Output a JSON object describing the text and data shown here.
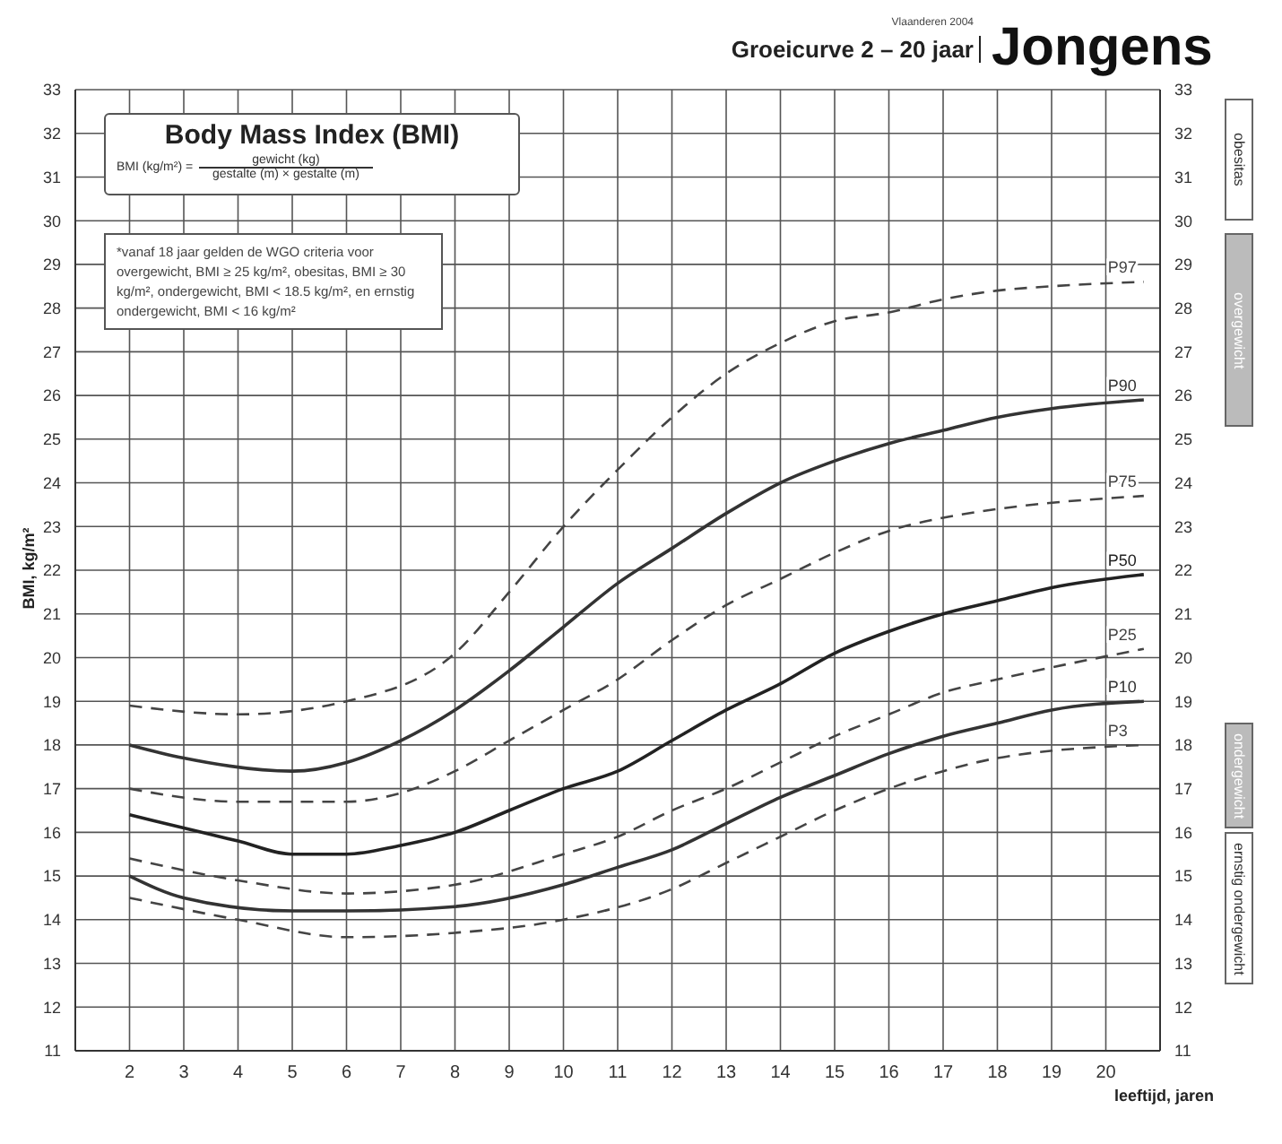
{
  "chart_data": {
    "type": "line",
    "title": "Jongens",
    "subtitle": "Groeicurve 2 – 20 jaar",
    "xlabel": "leeftijd, jaren",
    "ylabel": "BMI, kg/m²",
    "annotations": [
      "Vlaanderen 2004",
      "Body Mass Index (BMI)",
      "BMI (kg/m²) =",
      "gewicht (kg)",
      "gestalte (m) × gestalte (m)",
      "*vanaf 18 jaar gelden de WGO criteria voor overgewicht, BMI ≥ 25 kg/m², obesitas, BMI ≥ 30 kg/m², ondergewicht, BMI < 18.5 kg/m², en ernstig ondergewicht, BMI < 16 kg/m²",
      "obesitas",
      "overgewicht",
      "ondergewicht",
      "ernstig ondergewicht"
    ],
    "xlim": [
      1,
      21
    ],
    "xticks": [
      2,
      3,
      4,
      5,
      6,
      7,
      8,
      9,
      10,
      11,
      12,
      13,
      14,
      15,
      16,
      17,
      18,
      19,
      20
    ],
    "ylim": [
      11,
      33
    ],
    "yticks": [
      11,
      12,
      13,
      14,
      15,
      16,
      17,
      18,
      19,
      20,
      21,
      22,
      23,
      24,
      25,
      26,
      27,
      28,
      29,
      30,
      31,
      32,
      33
    ],
    "y2lim": [
      11,
      33
    ],
    "y2ticks": [
      11,
      12,
      13,
      14,
      15,
      16,
      17,
      18,
      19,
      20,
      21,
      22,
      23,
      24,
      25,
      26,
      27,
      28,
      29,
      30,
      31,
      32,
      33
    ],
    "grid": true,
    "marker": "none",
    "series": [
      {
        "name": "P97",
        "color": "#444444",
        "line_style": "dashed",
        "x": [
          2,
          4,
          6,
          8,
          9,
          10,
          11,
          12,
          13,
          14,
          15,
          16,
          17,
          18,
          19,
          20.7
        ],
        "values": [
          18.9,
          18.7,
          19,
          20.1,
          21.5,
          23,
          24.3,
          25.5,
          26.5,
          27.2,
          27.7,
          27.9,
          28.2,
          28.4,
          28.5,
          28.6
        ]
      },
      {
        "name": "P90",
        "color": "#333333",
        "line_style": "solid",
        "x": [
          2,
          3,
          5,
          6,
          7,
          8,
          9,
          10,
          11,
          12,
          13,
          14,
          15,
          16,
          17,
          18,
          19,
          20.7
        ],
        "values": [
          18,
          17.7,
          17.4,
          17.6,
          18.1,
          18.8,
          19.7,
          20.7,
          21.7,
          22.5,
          23.3,
          24,
          24.5,
          24.9,
          25.2,
          25.5,
          25.7,
          25.9
        ]
      },
      {
        "name": "P75",
        "color": "#444444",
        "line_style": "dashed",
        "x": [
          2,
          4,
          6,
          7,
          8,
          9,
          10,
          11,
          12,
          13,
          14,
          15,
          16,
          17,
          18,
          20.7
        ],
        "values": [
          17,
          16.7,
          16.7,
          16.9,
          17.4,
          18.1,
          18.8,
          19.5,
          20.4,
          21.2,
          21.8,
          22.4,
          22.9,
          23.2,
          23.4,
          23.7
        ]
      },
      {
        "name": "P50",
        "color": "#222222",
        "line_style": "solid",
        "x": [
          2,
          3,
          4,
          5,
          6,
          7,
          8,
          9,
          10,
          11,
          12,
          13,
          14,
          15,
          16,
          17,
          18,
          19,
          20.7
        ],
        "values": [
          16.4,
          16.1,
          15.8,
          15.5,
          15.5,
          15.7,
          16,
          16.5,
          17,
          17.4,
          18.1,
          18.8,
          19.4,
          20.1,
          20.6,
          21,
          21.3,
          21.6,
          21.9
        ]
      },
      {
        "name": "P25",
        "color": "#444444",
        "line_style": "dashed",
        "x": [
          2,
          4,
          6,
          8,
          10,
          11,
          12,
          13,
          14,
          15,
          16,
          17,
          18,
          20.7
        ],
        "values": [
          15.4,
          14.9,
          14.6,
          14.8,
          15.5,
          15.9,
          16.5,
          17,
          17.6,
          18.2,
          18.7,
          19.2,
          19.5,
          20.2
        ]
      },
      {
        "name": "P10",
        "color": "#333333",
        "line_style": "solid",
        "x": [
          2,
          3,
          5,
          6,
          8,
          10,
          11,
          12,
          13,
          14,
          15,
          16,
          17,
          18,
          19,
          20.7
        ],
        "values": [
          15,
          14.5,
          14.2,
          14.2,
          14.3,
          14.8,
          15.2,
          15.6,
          16.2,
          16.8,
          17.3,
          17.8,
          18.2,
          18.5,
          18.8,
          19
        ]
      },
      {
        "name": "P3",
        "color": "#444444",
        "line_style": "dashed",
        "x": [
          2,
          4,
          6,
          8,
          10,
          12,
          13,
          14,
          15,
          16,
          17,
          18,
          20.7
        ],
        "values": [
          14.5,
          14,
          13.6,
          13.7,
          14,
          14.7,
          15.3,
          15.9,
          16.5,
          17,
          17.4,
          17.7,
          18
        ]
      }
    ]
  }
}
